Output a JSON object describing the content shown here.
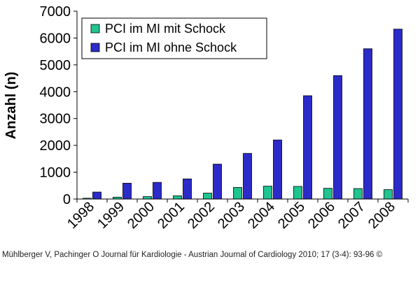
{
  "chart_data": {
    "type": "bar",
    "ylabel": "Anzahl (n)",
    "ylim": [
      0,
      7000
    ],
    "yticks": [
      0,
      1000,
      2000,
      3000,
      4000,
      5000,
      6000,
      7000
    ],
    "categories": [
      "1998",
      "1999",
      "2000",
      "2001",
      "2002",
      "2003",
      "2004",
      "2005",
      "2006",
      "2007",
      "2008"
    ],
    "series": [
      {
        "name": "PCI im MI mit Schock",
        "color": "#1fc48f",
        "values": [
          30,
          70,
          90,
          120,
          220,
          430,
          480,
          470,
          400,
          390,
          350
        ]
      },
      {
        "name": "PCI im MI ohne Schock",
        "color": "#2b2bc8",
        "values": [
          260,
          590,
          620,
          750,
          1300,
          1700,
          2200,
          3850,
          4600,
          5600,
          6330
        ]
      }
    ],
    "legend_position": "top-left",
    "grid": false
  },
  "caption": "Mühlberger V, Pachinger O Journal für Kardiologie - Austrian Journal of Cardiology 2010; 17 (3-4): 93-96 ©"
}
